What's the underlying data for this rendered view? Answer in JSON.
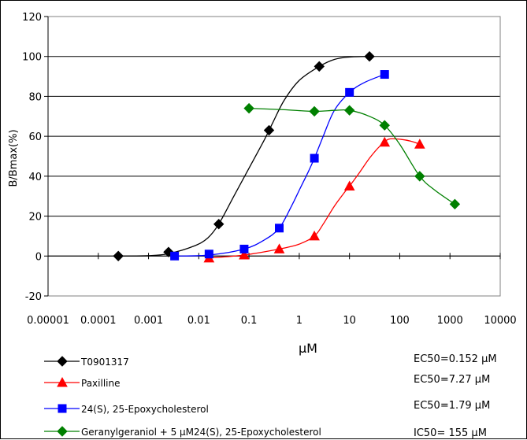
{
  "chart_data": {
    "type": "line",
    "xscale": "log",
    "xlabel": "μM",
    "ylabel": "B/Bmax(%)",
    "xlim": [
      1e-05,
      10000
    ],
    "ylim": [
      -20,
      120
    ],
    "grid": true,
    "x_ticks": [
      1e-05,
      0.0001,
      0.001,
      0.01,
      0.1,
      1,
      10,
      100,
      1000,
      10000
    ],
    "x_tick_labels": [
      "0.00001",
      "0.0001",
      "0.001",
      "0.01",
      "0.1",
      "1",
      "10",
      "100",
      "1000",
      "10000"
    ],
    "y_ticks": [
      -20,
      0,
      20,
      40,
      60,
      80,
      100,
      120
    ],
    "y_tick_labels": [
      "-20",
      "0",
      "20",
      "40",
      "60",
      "80",
      "100",
      "120"
    ],
    "legend_position": "bottom-left",
    "series": [
      {
        "name": "T0901317",
        "color": "#000000",
        "marker": "diamond",
        "stat": "EC50=0.152 μM",
        "points": [
          [
            0.00025,
            0
          ],
          [
            0.0025,
            2
          ],
          [
            0.025,
            16
          ],
          [
            0.25,
            63
          ],
          [
            2.5,
            95
          ],
          [
            25,
            100
          ]
        ],
        "curve": [
          [
            0.00025,
            0
          ],
          [
            0.001,
            0.2
          ],
          [
            0.0025,
            1.2
          ],
          [
            0.008,
            5
          ],
          [
            0.015,
            9
          ],
          [
            0.025,
            16
          ],
          [
            0.05,
            30
          ],
          [
            0.1,
            44
          ],
          [
            0.2,
            58
          ],
          [
            0.3,
            67
          ],
          [
            0.5,
            78
          ],
          [
            1,
            88
          ],
          [
            2.5,
            95
          ],
          [
            5,
            98.5
          ],
          [
            10,
            99.7
          ],
          [
            25,
            100
          ]
        ]
      },
      {
        "name": "Paxilline",
        "color": "#ff0000",
        "marker": "triangle",
        "stat": "EC50=7.27 μM",
        "points": [
          [
            0.016,
            -1
          ],
          [
            0.08,
            0.5
          ],
          [
            0.4,
            3.5
          ],
          [
            2,
            10
          ],
          [
            10,
            35
          ],
          [
            50,
            57
          ],
          [
            250,
            56
          ]
        ],
        "curve": [
          [
            0.016,
            -1
          ],
          [
            0.08,
            0.5
          ],
          [
            0.4,
            3.5
          ],
          [
            1,
            6
          ],
          [
            2,
            10
          ],
          [
            3,
            16
          ],
          [
            5,
            25
          ],
          [
            8,
            32
          ],
          [
            10,
            35
          ],
          [
            15,
            41
          ],
          [
            25,
            49
          ],
          [
            40,
            55
          ],
          [
            60,
            58.5
          ],
          [
            100,
            58.5
          ],
          [
            170,
            57.5
          ],
          [
            250,
            56
          ]
        ]
      },
      {
        "name": "24(S), 25-Epoxycholesterol",
        "color": "#0000ff",
        "marker": "square",
        "stat": "EC50=1.79 μM",
        "points": [
          [
            0.0033,
            0
          ],
          [
            0.016,
            1
          ],
          [
            0.08,
            3.5
          ],
          [
            0.4,
            14
          ],
          [
            2,
            49
          ],
          [
            10,
            82
          ],
          [
            50,
            91
          ]
        ],
        "curve": [
          [
            0.0033,
            0
          ],
          [
            0.016,
            0.5
          ],
          [
            0.08,
            3.5
          ],
          [
            0.2,
            8
          ],
          [
            0.4,
            14
          ],
          [
            0.7,
            25
          ],
          [
            1,
            33
          ],
          [
            1.5,
            42
          ],
          [
            2,
            49
          ],
          [
            3,
            60
          ],
          [
            5,
            73
          ],
          [
            10,
            82
          ],
          [
            20,
            87
          ],
          [
            50,
            91
          ]
        ]
      },
      {
        "name": "Geranylgeraniol + 5 μM24(S), 25-Epoxycholesterol",
        "color": "#008000",
        "marker": "diamond",
        "stat": "IC50= 155 μM",
        "points": [
          [
            0.1,
            74
          ],
          [
            2,
            72.5
          ],
          [
            10,
            73
          ],
          [
            50,
            65.5
          ],
          [
            250,
            40
          ],
          [
            1250,
            26
          ]
        ],
        "curve": [
          [
            0.1,
            74
          ],
          [
            0.5,
            73.3
          ],
          [
            2,
            72.5
          ],
          [
            5,
            73
          ],
          [
            10,
            73
          ],
          [
            25,
            70
          ],
          [
            50,
            65.5
          ],
          [
            100,
            56
          ],
          [
            250,
            40
          ],
          [
            500,
            33
          ],
          [
            1250,
            26
          ]
        ]
      }
    ]
  }
}
